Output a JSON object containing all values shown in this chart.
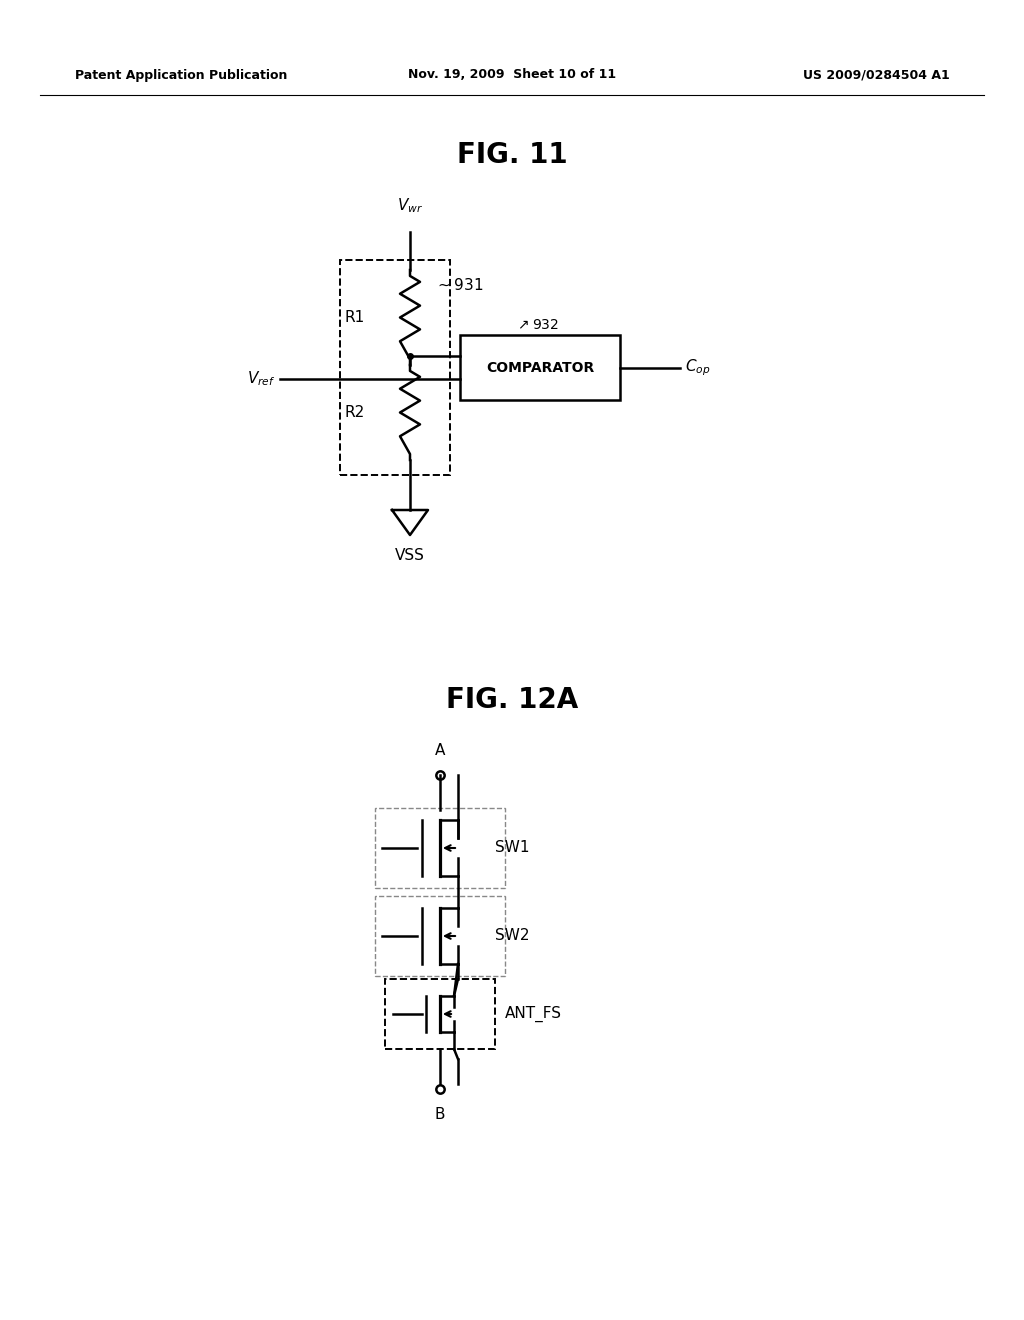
{
  "background_color": "#ffffff",
  "header_left": "Patent Application Publication",
  "header_center": "Nov. 19, 2009  Sheet 10 of 11",
  "header_right": "US 2009/0284504 A1",
  "fig11_title": "FIG. 11",
  "fig12a_title": "FIG. 12A",
  "lw": 1.8,
  "lw_thin": 1.4
}
